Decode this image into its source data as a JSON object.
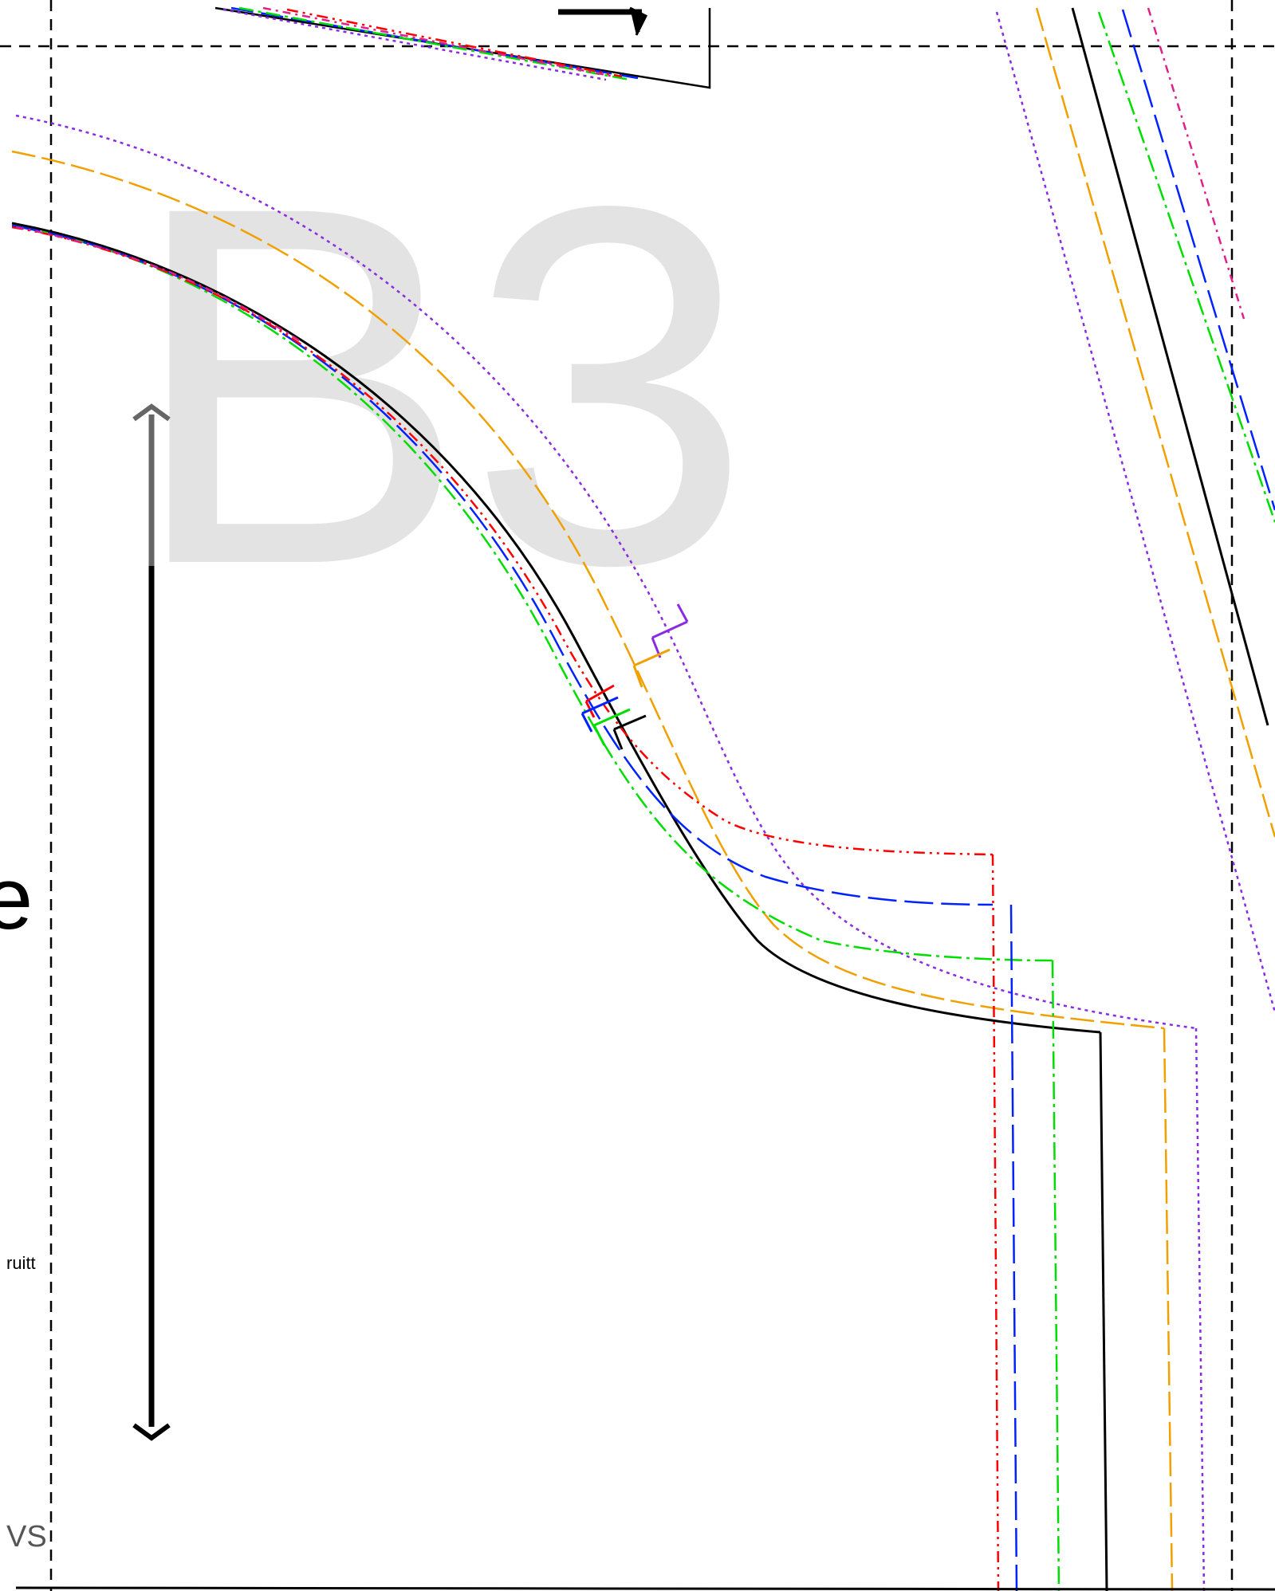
{
  "tile": {
    "label": "B3",
    "label_color": "#e3e3e3"
  },
  "fragments": {
    "left_large": "e",
    "left_small": "ruitt",
    "bottom_left": "VS"
  },
  "size_colors": {
    "black": "#000000",
    "red": "#ff0000",
    "blue": "#0022ff",
    "green": "#00dd00",
    "orange": "#f0a000",
    "purple": "#8a2be2",
    "magenta": "#e0208a"
  },
  "icons": {
    "grainline": "double-headed-arrow-icon",
    "fold": "right-angle-arrow-icon"
  }
}
